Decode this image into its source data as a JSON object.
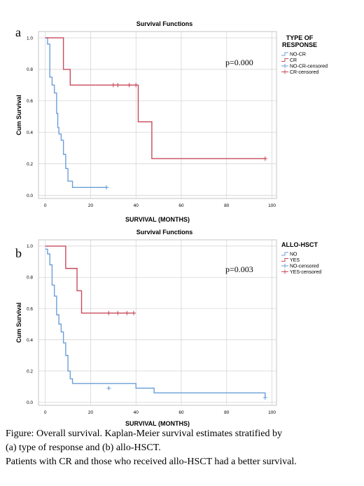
{
  "chart_data": [
    {
      "type": "line",
      "step": true,
      "panel_label": "a",
      "title": "Survival Functions",
      "xlabel": "SURVIVAL (MONTHS)",
      "ylabel": "Cum Survival",
      "xlim": [
        -3,
        102
      ],
      "ylim": [
        -0.02,
        1.04
      ],
      "x_ticks": [
        0,
        20,
        40,
        60,
        80,
        100
      ],
      "y_ticks": [
        0.0,
        0.2,
        0.4,
        0.6,
        0.8,
        1.0
      ],
      "grid": true,
      "annotation": "p=0.000",
      "legend": {
        "position": "right",
        "title_lines": [
          "TYPE OF",
          "RESPONSE"
        ],
        "entries": [
          "NO-CR",
          "CR",
          "NO-CR-censored",
          "CR-censored"
        ]
      },
      "series": [
        {
          "name": "NO-CR",
          "color": "#6a9fd8",
          "x": [
            0,
            1,
            2,
            3,
            4,
            5,
            5.5,
            6,
            7,
            8,
            9,
            10,
            12,
            27
          ],
          "y": [
            1.0,
            0.96,
            0.75,
            0.7,
            0.65,
            0.52,
            0.43,
            0.39,
            0.35,
            0.26,
            0.17,
            0.09,
            0.05,
            0.05
          ],
          "censored": [
            {
              "x": 27,
              "y": 0.05
            }
          ]
        },
        {
          "name": "CR",
          "color": "#c84b5c",
          "x": [
            0,
            8,
            11,
            41,
            47,
            97
          ],
          "y": [
            1.0,
            0.8,
            0.7,
            0.467,
            0.233,
            0.233
          ],
          "censored": [
            {
              "x": 30,
              "y": 0.7
            },
            {
              "x": 32,
              "y": 0.7
            },
            {
              "x": 37,
              "y": 0.7
            },
            {
              "x": 40,
              "y": 0.7
            },
            {
              "x": 97,
              "y": 0.233
            }
          ]
        }
      ]
    },
    {
      "type": "line",
      "step": true,
      "panel_label": "b",
      "title": "Survival Functions",
      "xlabel": "SURVIVAL (MONTHS)",
      "ylabel": "Cum Survival",
      "xlim": [
        -3,
        102
      ],
      "ylim": [
        -0.02,
        1.04
      ],
      "x_ticks": [
        0,
        20,
        40,
        60,
        80,
        100
      ],
      "y_ticks": [
        0.0,
        0.2,
        0.4,
        0.6,
        0.8,
        1.0
      ],
      "grid": true,
      "annotation": "p=0.003",
      "legend": {
        "position": "right",
        "title_lines": [
          "ALLO-HSCT"
        ],
        "entries": [
          "NO",
          "YES",
          "NO-censored",
          "YES-censored"
        ]
      },
      "series": [
        {
          "name": "NO",
          "color": "#6a9fd8",
          "x": [
            0,
            1,
            2,
            3,
            4,
            5,
            6,
            7,
            8,
            9,
            10,
            11,
            12,
            40,
            48,
            97
          ],
          "y": [
            0.98,
            0.95,
            0.88,
            0.75,
            0.68,
            0.56,
            0.5,
            0.45,
            0.38,
            0.3,
            0.2,
            0.15,
            0.12,
            0.09,
            0.06,
            0.03
          ],
          "censored": [
            {
              "x": 28,
              "y": 0.09
            },
            {
              "x": 97,
              "y": 0.03
            }
          ]
        },
        {
          "name": "YES",
          "color": "#c84b5c",
          "x": [
            0,
            9,
            14,
            16,
            39
          ],
          "y": [
            1.0,
            0.857,
            0.714,
            0.571,
            0.571
          ],
          "censored": [
            {
              "x": 28,
              "y": 0.571
            },
            {
              "x": 32,
              "y": 0.571
            },
            {
              "x": 36,
              "y": 0.571
            },
            {
              "x": 39,
              "y": 0.571
            }
          ]
        }
      ]
    }
  ],
  "caption": {
    "lines": [
      "Figure: Overall survival. Kaplan-Meier survival estimates stratified by",
      "(a) type of response and (b) allo-HSCT.",
      "Patients with CR and those who received allo-HSCT had a better survival."
    ]
  }
}
